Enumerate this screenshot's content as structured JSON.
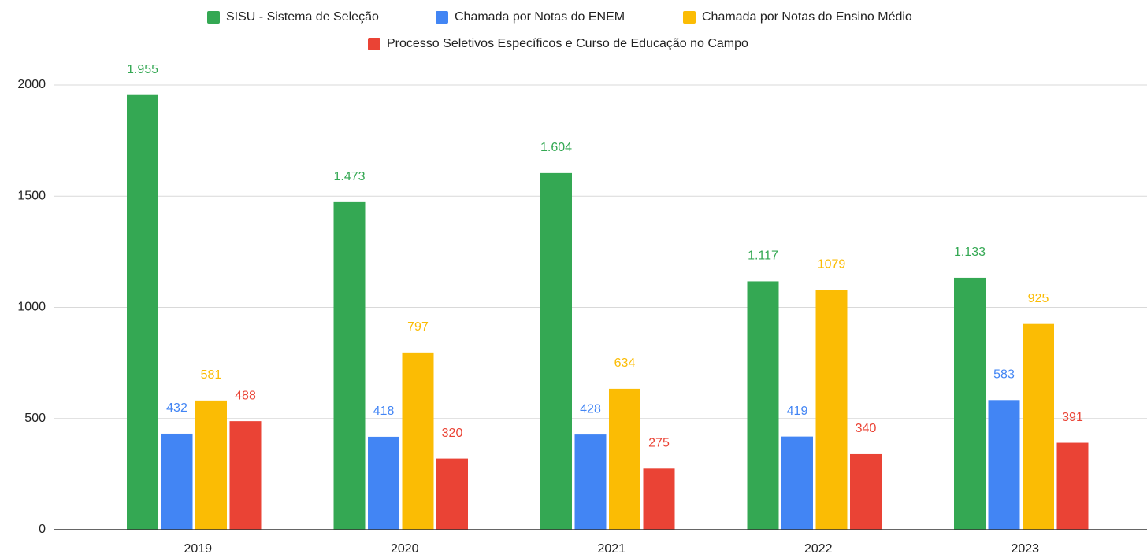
{
  "chart_data": {
    "type": "bar",
    "categories": [
      "2019",
      "2020",
      "2021",
      "2022",
      "2023"
    ],
    "series": [
      {
        "name": "SISU - Sistema de Seleção",
        "color": "#34a853",
        "values": [
          1955,
          1473,
          1604,
          1117,
          1133
        ],
        "value_labels": [
          "1.955",
          "1.473",
          "1.604",
          "1.117",
          "1.133"
        ]
      },
      {
        "name": "Chamada por Notas do ENEM",
        "color": "#4285f4",
        "values": [
          432,
          418,
          428,
          419,
          583
        ]
      },
      {
        "name": "Chamada por Notas do Ensino Médio",
        "color": "#fbbc04",
        "values": [
          581,
          797,
          634,
          1079,
          925
        ]
      },
      {
        "name": "Processo Seletivos Específicos e Curso de Educação no Campo",
        "color": "#ea4335",
        "values": [
          488,
          320,
          275,
          340,
          391
        ]
      }
    ],
    "ylim": [
      0,
      2000
    ],
    "yticks": [
      0,
      500,
      1000,
      1500,
      2000
    ],
    "grid": true,
    "legend": "top"
  }
}
